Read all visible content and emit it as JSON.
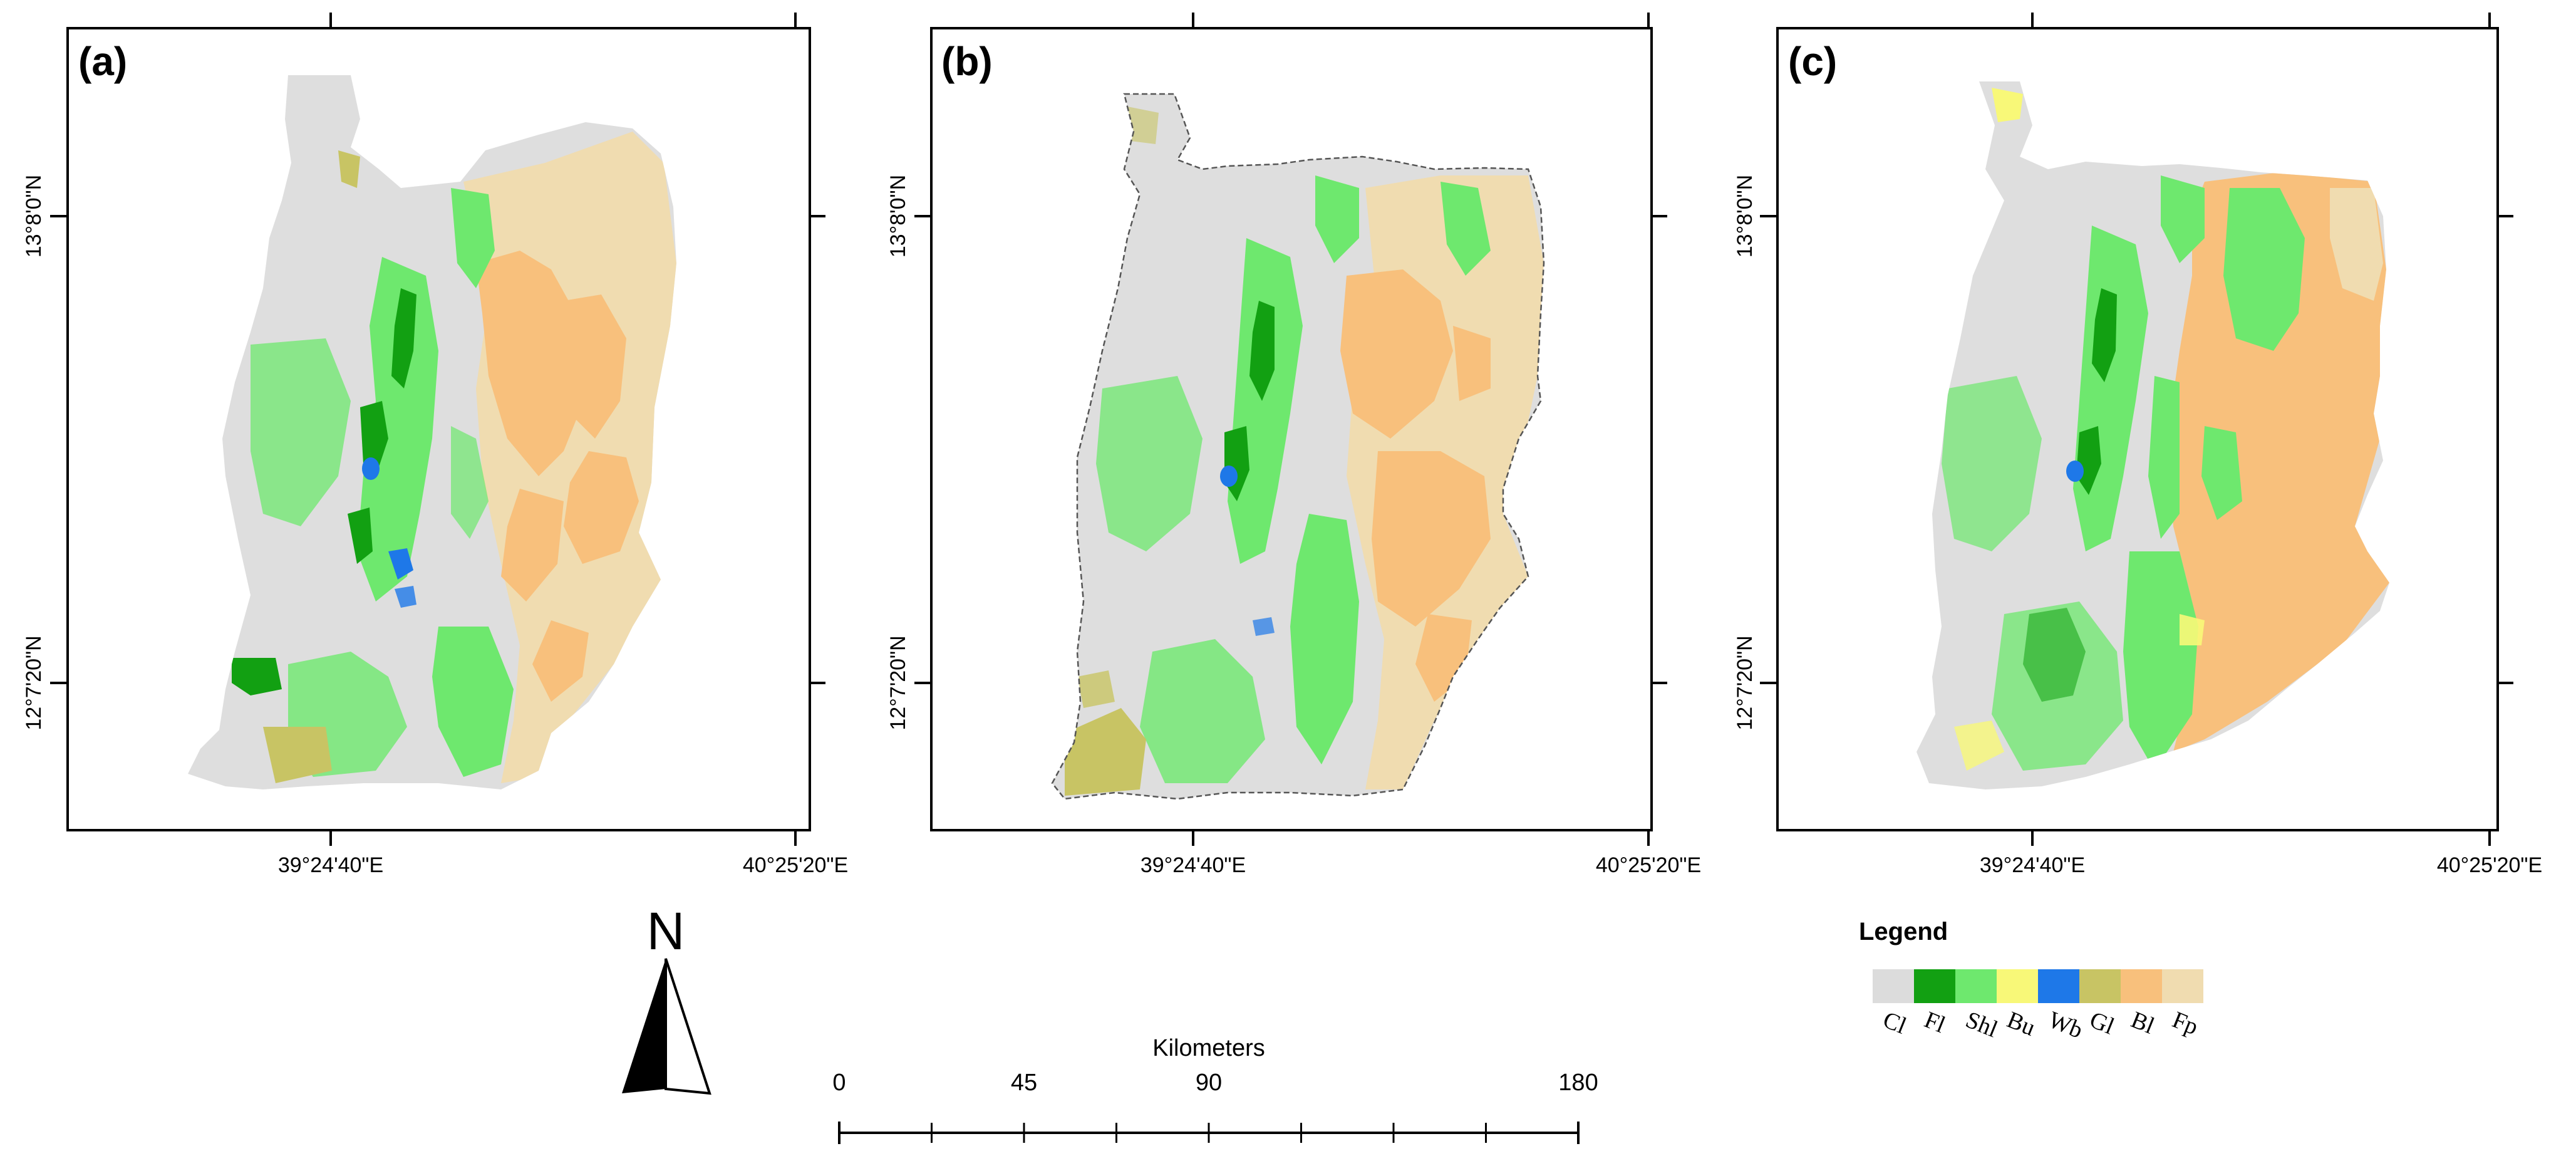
{
  "panels": [
    {
      "letter": "(a)",
      "lat_top": "13°8'0\"N",
      "lat_bottom": "12°7'20\"N",
      "lon_left": "39°24'40\"E",
      "lon_right": "40°25'20\"E"
    },
    {
      "letter": "(b)",
      "lat_top": "13°8'0\"N",
      "lat_bottom": "12°7'20\"N",
      "lon_left": "39°24'40\"E",
      "lon_right": "40°25'20\"E"
    },
    {
      "letter": "(c)",
      "lat_top": "13°8'0\"N",
      "lat_bottom": "12°7'20\"N",
      "lon_left": "39°24'40\"E",
      "lon_right": "40°25'20\"E"
    }
  ],
  "legend": {
    "title": "Legend",
    "classes": [
      {
        "code": "Cl",
        "color": "#dcdcdc"
      },
      {
        "code": "Fl",
        "color": "#12a012"
      },
      {
        "code": "Shl",
        "color": "#6ee86e"
      },
      {
        "code": "Bu",
        "color": "#f8f878"
      },
      {
        "code": "Wb",
        "color": "#1e78e8"
      },
      {
        "code": "Gl",
        "color": "#c8c464"
      },
      {
        "code": "Bl",
        "color": "#f8c07c"
      },
      {
        "code": "Fp",
        "color": "#f0dcb0"
      }
    ]
  },
  "north_arrow": {
    "letter": "N"
  },
  "scale_bar": {
    "title": "Kilometers",
    "labels": [
      "0",
      "45",
      "90",
      "180"
    ]
  }
}
